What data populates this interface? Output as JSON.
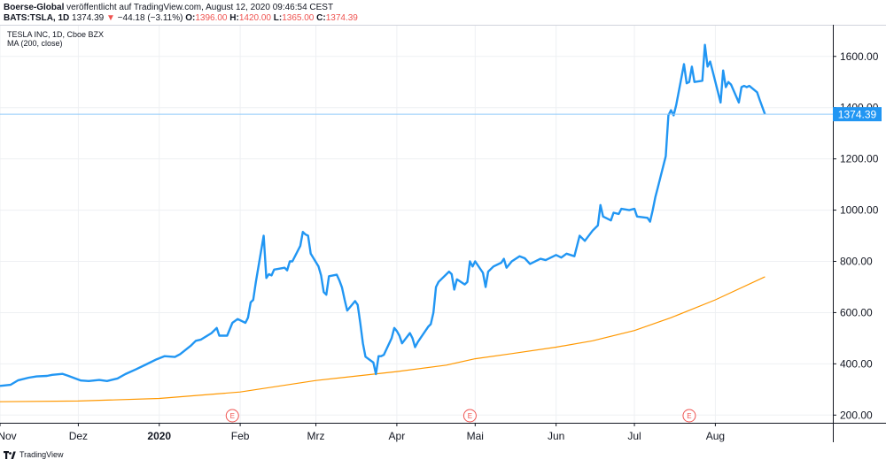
{
  "header": {
    "publisher": "Boerse-Global",
    "published_text": "veröffentlicht auf TradingView.com, August 12, 2020 09:46:54 CEST",
    "symbol": "BATS:TSLA, 1D",
    "last": "1374.39",
    "change_arrow": "▼",
    "change": "−44.18 (−3.11%)",
    "o_label": "O:",
    "o_val": "1396.00",
    "h_label": "H:",
    "h_val": "1420.00",
    "l_label": "L:",
    "l_val": "1365.00",
    "c_label": "C:",
    "c_val": "1374.39"
  },
  "legend": {
    "instrument": "TESLA INC, 1D, Cboe BZX",
    "indicator": "MA (200, close)"
  },
  "footer": {
    "brand": "TradingView"
  },
  "colors": {
    "price": "#2196f3",
    "ma": "#ff9800",
    "last_line": "#90caf9",
    "earnings": "#ef5350",
    "down": "#ef5350",
    "grid": "#eef0f3"
  },
  "chart_data": {
    "type": "line",
    "title": "TESLA INC, 1D, Cboe BZX",
    "x_tick_labels": [
      "Nov",
      "Dez",
      "2020",
      "Feb",
      "Mrz",
      "Apr",
      "Mai",
      "Jun",
      "Jul",
      "Aug"
    ],
    "y_tick_labels": [
      "200.00",
      "400.00",
      "600.00",
      "800.00",
      "1000.00",
      "1200.00",
      "1400.00",
      "1600.00"
    ],
    "ylim": [
      170,
      1720
    ],
    "xlim": [
      "2019-11-01",
      "2020-09-15"
    ],
    "last_value": 1374.39,
    "last_label": "1374.39",
    "earnings_marker": "E",
    "earnings_dates": [
      "2020-01-29",
      "2020-04-29",
      "2020-07-22"
    ],
    "series": [
      {
        "name": "TESLA INC, 1D, Cboe BZX",
        "points": [
          [
            "2019-11-01",
            314
          ],
          [
            "2019-11-05",
            318
          ],
          [
            "2019-11-08",
            336
          ],
          [
            "2019-11-12",
            346
          ],
          [
            "2019-11-15",
            351
          ],
          [
            "2019-11-19",
            353
          ],
          [
            "2019-11-21",
            357
          ],
          [
            "2019-11-25",
            361
          ],
          [
            "2019-11-27",
            354
          ],
          [
            "2019-12-02",
            335
          ],
          [
            "2019-12-05",
            333
          ],
          [
            "2019-12-09",
            337
          ],
          [
            "2019-12-12",
            333
          ],
          [
            "2019-12-16",
            343
          ],
          [
            "2019-12-19",
            360
          ],
          [
            "2019-12-23",
            378
          ],
          [
            "2019-12-27",
            398
          ],
          [
            "2019-12-31",
            418
          ],
          [
            "2020-01-03",
            430
          ],
          [
            "2020-01-07",
            427
          ],
          [
            "2020-01-09",
            438
          ],
          [
            "2020-01-13",
            470
          ],
          [
            "2020-01-15",
            490
          ],
          [
            "2020-01-17",
            495
          ],
          [
            "2020-01-21",
            520
          ],
          [
            "2020-01-23",
            540
          ],
          [
            "2020-01-24",
            510
          ],
          [
            "2020-01-27",
            510
          ],
          [
            "2020-01-29",
            560
          ],
          [
            "2020-01-31",
            575
          ],
          [
            "2020-02-03",
            560
          ],
          [
            "2020-02-04",
            580
          ],
          [
            "2020-02-05",
            640
          ],
          [
            "2020-02-06",
            650
          ],
          [
            "2020-02-07",
            720
          ],
          [
            "2020-02-10",
            900
          ],
          [
            "2020-02-11",
            735
          ],
          [
            "2020-02-12",
            750
          ],
          [
            "2020-02-13",
            745
          ],
          [
            "2020-02-14",
            768
          ],
          [
            "2020-02-18",
            775
          ],
          [
            "2020-02-19",
            765
          ],
          [
            "2020-02-20",
            800
          ],
          [
            "2020-02-21",
            800
          ],
          [
            "2020-02-24",
            860
          ],
          [
            "2020-02-25",
            915
          ],
          [
            "2020-02-26",
            905
          ],
          [
            "2020-02-27",
            900
          ],
          [
            "2020-02-28",
            830
          ],
          [
            "2020-03-02",
            780
          ],
          [
            "2020-03-03",
            745
          ],
          [
            "2020-03-04",
            680
          ],
          [
            "2020-03-05",
            670
          ],
          [
            "2020-03-06",
            742
          ],
          [
            "2020-03-09",
            748
          ],
          [
            "2020-03-10",
            725
          ],
          [
            "2020-03-11",
            698
          ],
          [
            "2020-03-12",
            650
          ],
          [
            "2020-03-13",
            608
          ],
          [
            "2020-03-16",
            645
          ],
          [
            "2020-03-17",
            630
          ],
          [
            "2020-03-18",
            560
          ],
          [
            "2020-03-19",
            480
          ],
          [
            "2020-03-20",
            428
          ],
          [
            "2020-03-23",
            405
          ],
          [
            "2020-03-24",
            360
          ],
          [
            "2020-03-25",
            430
          ],
          [
            "2020-03-26",
            430
          ],
          [
            "2020-03-27",
            435
          ],
          [
            "2020-03-30",
            500
          ],
          [
            "2020-03-31",
            540
          ],
          [
            "2020-04-01",
            528
          ],
          [
            "2020-04-02",
            510
          ],
          [
            "2020-04-03",
            480
          ],
          [
            "2020-04-06",
            520
          ],
          [
            "2020-04-07",
            500
          ],
          [
            "2020-04-08",
            465
          ],
          [
            "2020-04-09",
            485
          ],
          [
            "2020-04-13",
            545
          ],
          [
            "2020-04-14",
            555
          ],
          [
            "2020-04-15",
            600
          ],
          [
            "2020-04-16",
            700
          ],
          [
            "2020-04-17",
            720
          ],
          [
            "2020-04-20",
            750
          ],
          [
            "2020-04-21",
            760
          ],
          [
            "2020-04-22",
            750
          ],
          [
            "2020-04-23",
            690
          ],
          [
            "2020-04-24",
            730
          ],
          [
            "2020-04-27",
            710
          ],
          [
            "2020-04-28",
            720
          ],
          [
            "2020-04-29",
            800
          ],
          [
            "2020-04-30",
            780
          ],
          [
            "2020-05-01",
            800
          ],
          [
            "2020-05-04",
            755
          ],
          [
            "2020-05-05",
            700
          ],
          [
            "2020-05-06",
            760
          ],
          [
            "2020-05-08",
            780
          ],
          [
            "2020-05-11",
            795
          ],
          [
            "2020-05-12",
            810
          ],
          [
            "2020-05-13",
            775
          ],
          [
            "2020-05-15",
            800
          ],
          [
            "2020-05-18",
            820
          ],
          [
            "2020-05-20",
            812
          ],
          [
            "2020-05-22",
            790
          ],
          [
            "2020-05-26",
            810
          ],
          [
            "2020-05-28",
            805
          ],
          [
            "2020-06-01",
            825
          ],
          [
            "2020-06-03",
            815
          ],
          [
            "2020-06-05",
            830
          ],
          [
            "2020-06-08",
            820
          ],
          [
            "2020-06-10",
            900
          ],
          [
            "2020-06-12",
            880
          ],
          [
            "2020-06-15",
            920
          ],
          [
            "2020-06-17",
            940
          ],
          [
            "2020-06-18",
            1020
          ],
          [
            "2020-06-19",
            975
          ],
          [
            "2020-06-22",
            960
          ],
          [
            "2020-06-23",
            990
          ],
          [
            "2020-06-25",
            985
          ],
          [
            "2020-06-26",
            1005
          ],
          [
            "2020-06-29",
            1000
          ],
          [
            "2020-07-01",
            1005
          ],
          [
            "2020-07-02",
            975
          ],
          [
            "2020-07-06",
            970
          ],
          [
            "2020-07-07",
            955
          ],
          [
            "2020-07-08",
            1000
          ],
          [
            "2020-07-09",
            1050
          ],
          [
            "2020-07-10",
            1090
          ],
          [
            "2020-07-13",
            1210
          ],
          [
            "2020-07-14",
            1370
          ],
          [
            "2020-07-15",
            1390
          ],
          [
            "2020-07-16",
            1370
          ],
          [
            "2020-07-17",
            1410
          ],
          [
            "2020-07-20",
            1570
          ],
          [
            "2020-07-21",
            1495
          ],
          [
            "2020-07-22",
            1500
          ],
          [
            "2020-07-23",
            1560
          ],
          [
            "2020-07-24",
            1500
          ],
          [
            "2020-07-27",
            1505
          ],
          [
            "2020-07-28",
            1645
          ],
          [
            "2020-07-29",
            1560
          ],
          [
            "2020-07-30",
            1580
          ],
          [
            "2020-07-31",
            1540
          ],
          [
            "2020-08-03",
            1420
          ],
          [
            "2020-08-04",
            1545
          ],
          [
            "2020-08-05",
            1480
          ],
          [
            "2020-08-06",
            1500
          ],
          [
            "2020-08-07",
            1490
          ],
          [
            "2020-08-10",
            1420
          ],
          [
            "2020-08-11",
            1480
          ],
          [
            "2020-08-12",
            1485
          ],
          [
            "2020-08-13",
            1480
          ],
          [
            "2020-08-14",
            1485
          ],
          [
            "2020-08-17",
            1460
          ],
          [
            "2020-08-18",
            1430
          ],
          [
            "2020-08-20",
            1374
          ]
        ]
      },
      {
        "name": "MA (200, close)",
        "points": [
          [
            "2019-11-01",
            252
          ],
          [
            "2019-12-01",
            255
          ],
          [
            "2020-01-01",
            265
          ],
          [
            "2020-02-01",
            290
          ],
          [
            "2020-03-01",
            335
          ],
          [
            "2020-04-01",
            370
          ],
          [
            "2020-04-20",
            395
          ],
          [
            "2020-05-01",
            420
          ],
          [
            "2020-05-15",
            440
          ],
          [
            "2020-06-01",
            465
          ],
          [
            "2020-06-15",
            490
          ],
          [
            "2020-07-01",
            530
          ],
          [
            "2020-07-15",
            580
          ],
          [
            "2020-08-01",
            650
          ],
          [
            "2020-08-20",
            740
          ]
        ]
      }
    ]
  }
}
